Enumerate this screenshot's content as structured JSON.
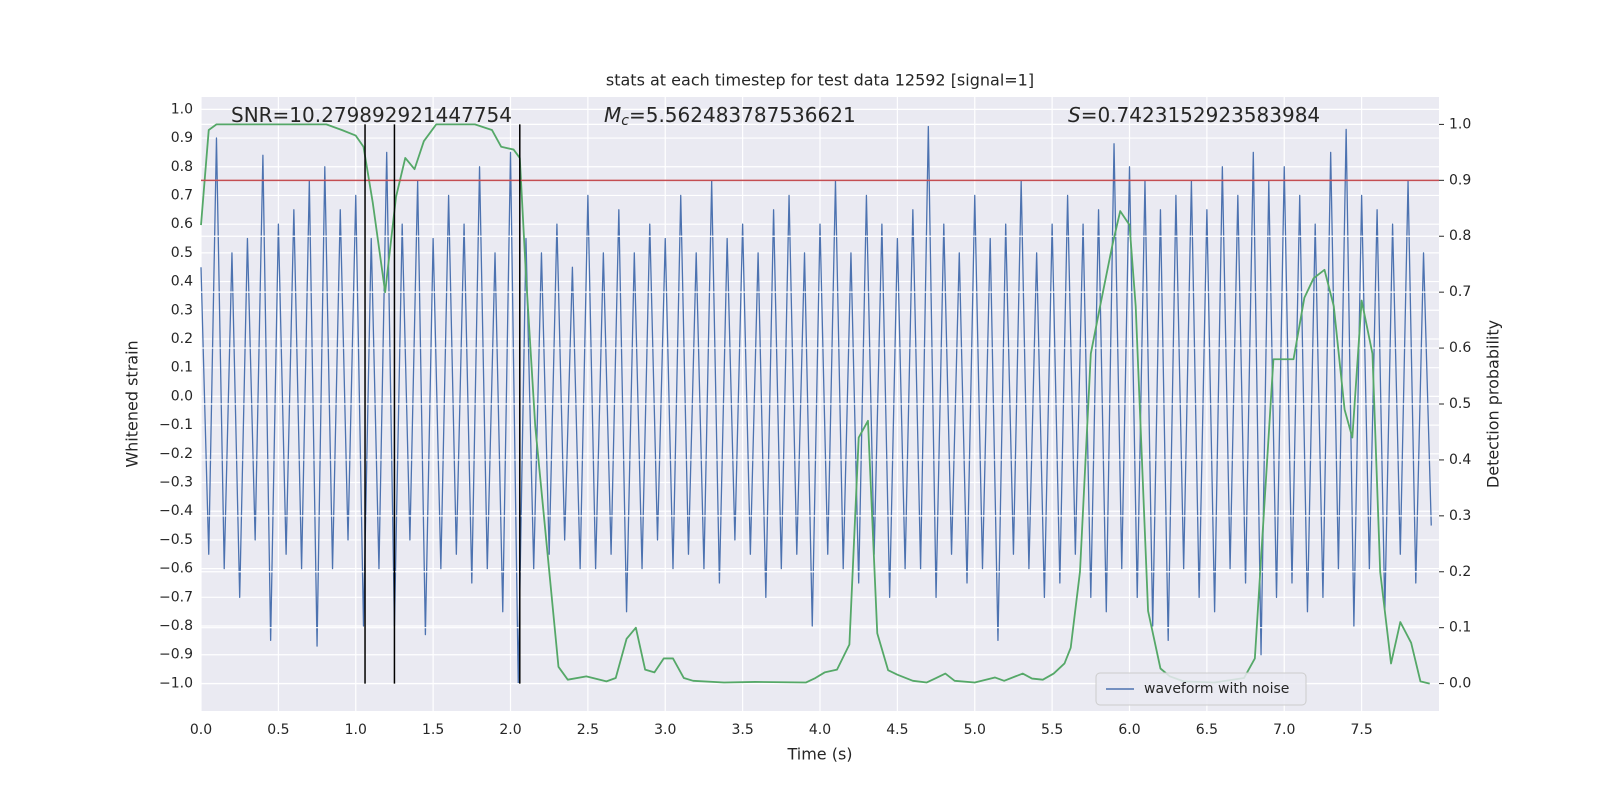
{
  "chart_data": {
    "type": "line",
    "title": "stats at each timestep for test data 12592 [signal=1]",
    "xlabel": "Time (s)",
    "ylabel": "Whitened strain",
    "y2label": "Detection probability",
    "annotations": [
      {
        "parts": [
          "SNR=10.279892921447754"
        ]
      },
      {
        "parts": [
          "M",
          "c",
          "=5.562483787536621"
        ]
      },
      {
        "parts": [
          "S",
          "=0.7423152923583984"
        ]
      }
    ],
    "xlim": [
      0,
      8.0
    ],
    "ylim": [
      -1.096,
      1.043
    ],
    "y2lim": [
      -0.049,
      1.049
    ],
    "xticks": [
      {
        "value": 0,
        "label": "0.0"
      },
      {
        "value": 0.5,
        "label": "0.5"
      },
      {
        "value": 1,
        "label": "1.0"
      },
      {
        "value": 1.5,
        "label": "1.5"
      },
      {
        "value": 2,
        "label": "2.0"
      },
      {
        "value": 2.5,
        "label": "2.5"
      },
      {
        "value": 3,
        "label": "3.0"
      },
      {
        "value": 3.5,
        "label": "3.5"
      },
      {
        "value": 4,
        "label": "4.0"
      },
      {
        "value": 4.5,
        "label": "4.5"
      },
      {
        "value": 5,
        "label": "5.0"
      },
      {
        "value": 5.5,
        "label": "5.5"
      },
      {
        "value": 6,
        "label": "6.0"
      },
      {
        "value": 6.5,
        "label": "6.5"
      },
      {
        "value": 7,
        "label": "7.0"
      },
      {
        "value": 7.5,
        "label": "7.5"
      }
    ],
    "yticks": [
      {
        "value": -1,
        "label": "−1.0"
      },
      {
        "value": -0.9,
        "label": "−0.9"
      },
      {
        "value": -0.8,
        "label": "−0.8"
      },
      {
        "value": -0.7,
        "label": "−0.7"
      },
      {
        "value": -0.6,
        "label": "−0.6"
      },
      {
        "value": -0.5,
        "label": "−0.5"
      },
      {
        "value": -0.4,
        "label": "−0.4"
      },
      {
        "value": -0.3,
        "label": "−0.3"
      },
      {
        "value": -0.2,
        "label": "−0.2"
      },
      {
        "value": -0.1,
        "label": "−0.1"
      },
      {
        "value": 0,
        "label": "0.0"
      },
      {
        "value": 0.1,
        "label": "0.1"
      },
      {
        "value": 0.2,
        "label": "0.2"
      },
      {
        "value": 0.3,
        "label": "0.3"
      },
      {
        "value": 0.4,
        "label": "0.4"
      },
      {
        "value": 0.5,
        "label": "0.5"
      },
      {
        "value": 0.6,
        "label": "0.6"
      },
      {
        "value": 0.7,
        "label": "0.7"
      },
      {
        "value": 0.8,
        "label": "0.8"
      },
      {
        "value": 0.9,
        "label": "0.9"
      },
      {
        "value": 1,
        "label": "1.0"
      }
    ],
    "y2ticks": [
      {
        "value": 0,
        "label": "0.0"
      },
      {
        "value": 0.1,
        "label": "0.1"
      },
      {
        "value": 0.2,
        "label": "0.2"
      },
      {
        "value": 0.3,
        "label": "0.3"
      },
      {
        "value": 0.4,
        "label": "0.4"
      },
      {
        "value": 0.5,
        "label": "0.5"
      },
      {
        "value": 0.6,
        "label": "0.6"
      },
      {
        "value": 0.7,
        "label": "0.7"
      },
      {
        "value": 0.8,
        "label": "0.8"
      },
      {
        "value": 0.9,
        "label": "0.9"
      },
      {
        "value": 1,
        "label": "1.0"
      }
    ],
    "grid": true,
    "legend": "lower right",
    "series": [
      {
        "name": "waveform with noise",
        "color": "#4c72b0",
        "x": [
          0,
          0.05,
          0.1,
          0.15,
          0.2,
          0.25,
          0.3,
          0.35,
          0.4,
          0.45,
          0.5,
          0.55,
          0.6,
          0.65,
          0.7,
          0.75,
          0.8,
          0.85,
          0.9,
          0.95,
          1,
          1.05,
          1.1,
          1.15,
          1.2,
          1.25,
          1.3,
          1.35,
          1.4,
          1.45,
          1.5,
          1.55,
          1.6,
          1.65,
          1.7,
          1.75,
          1.8,
          1.85,
          1.9,
          1.95,
          2,
          2.05,
          2.1,
          2.15,
          2.2,
          2.25,
          2.3,
          2.35,
          2.4,
          2.45,
          2.5,
          2.55,
          2.6,
          2.65,
          2.7,
          2.75,
          2.8,
          2.85,
          2.9,
          2.95,
          3,
          3.05,
          3.1,
          3.15,
          3.2,
          3.25,
          3.3,
          3.35,
          3.4,
          3.45,
          3.5,
          3.55,
          3.6,
          3.65,
          3.7,
          3.75,
          3.8,
          3.85,
          3.9,
          3.95,
          4,
          4.05,
          4.1,
          4.15,
          4.2,
          4.25,
          4.3,
          4.35,
          4.4,
          4.45,
          4.5,
          4.55,
          4.6,
          4.65,
          4.7,
          4.75,
          4.8,
          4.85,
          4.9,
          4.95,
          5,
          5.05,
          5.1,
          5.15,
          5.2,
          5.25,
          5.3,
          5.35,
          5.4,
          5.45,
          5.5,
          5.55,
          5.6,
          5.65,
          5.7,
          5.75,
          5.8,
          5.85,
          5.9,
          5.95,
          6,
          6.05,
          6.1,
          6.15,
          6.2,
          6.25,
          6.3,
          6.35,
          6.4,
          6.45,
          6.5,
          6.55,
          6.6,
          6.65,
          6.7,
          6.75,
          6.8,
          6.85,
          6.9,
          6.95,
          7,
          7.05,
          7.1,
          7.15,
          7.2,
          7.25,
          7.3,
          7.35,
          7.4,
          7.45,
          7.5,
          7.55,
          7.6,
          7.65,
          7.7,
          7.75,
          7.8,
          7.85,
          7.9,
          7.95
        ],
        "values": [
          0.45,
          -0.55,
          0.9,
          -0.6,
          0.5,
          -0.7,
          0.55,
          -0.5,
          0.84,
          -0.85,
          0.6,
          -0.55,
          0.65,
          -0.6,
          0.75,
          -0.87,
          0.8,
          -0.6,
          0.65,
          -0.5,
          0.7,
          -0.8,
          0.55,
          -0.6,
          0.85,
          -0.8,
          0.6,
          -0.5,
          0.75,
          -0.83,
          0.55,
          -0.6,
          0.7,
          -0.55,
          0.6,
          -0.65,
          0.8,
          -0.6,
          0.5,
          -0.75,
          0.85,
          -1.0,
          0.55,
          -0.6,
          0.5,
          -0.55,
          0.6,
          -0.5,
          0.45,
          -0.6,
          0.7,
          -0.6,
          0.5,
          -0.55,
          0.65,
          -0.75,
          0.5,
          -0.6,
          0.6,
          -0.5,
          0.55,
          -0.6,
          0.7,
          -0.55,
          0.5,
          -0.6,
          0.75,
          -0.65,
          0.55,
          -0.5,
          0.6,
          -0.55,
          0.5,
          -0.7,
          0.65,
          -0.6,
          0.7,
          -0.55,
          0.5,
          -0.8,
          0.6,
          -0.55,
          0.75,
          -0.6,
          0.5,
          -0.65,
          0.7,
          -0.55,
          0.6,
          -0.7,
          0.55,
          -0.6,
          0.65,
          -0.6,
          0.94,
          -0.7,
          0.6,
          -0.55,
          0.5,
          -0.65,
          0.7,
          -0.6,
          0.55,
          -0.85,
          0.6,
          -0.55,
          0.75,
          -0.6,
          0.5,
          -0.7,
          0.6,
          -0.65,
          0.7,
          -0.55,
          0.6,
          -0.7,
          0.65,
          -0.75,
          0.88,
          -0.6,
          0.8,
          -0.7,
          0.75,
          -0.8,
          0.65,
          -0.85,
          0.7,
          -0.6,
          0.75,
          -0.7,
          0.65,
          -0.75,
          0.8,
          -0.6,
          0.7,
          -0.65,
          0.85,
          -0.9,
          0.75,
          -0.7,
          0.8,
          -0.65,
          0.7,
          -0.75,
          0.6,
          -0.7,
          0.85,
          -0.6,
          0.93,
          -0.8,
          0.7,
          -0.6,
          0.65,
          -0.75,
          0.6,
          -0.55,
          0.75,
          -0.65,
          0.5,
          -0.45
        ]
      },
      {
        "color": "#55a868",
        "axis": "y2",
        "x": [
          0,
          0.05,
          0.1,
          0.81,
          0.91,
          1.0,
          1.05,
          1.11,
          1.19,
          1.26,
          1.32,
          1.38,
          1.44,
          1.52,
          1.77,
          1.88,
          1.94,
          2.02,
          2.06,
          2.1,
          2.16,
          2.31,
          2.37,
          2.49,
          2.62,
          2.68,
          2.75,
          2.81,
          2.87,
          2.93,
          2.99,
          3.05,
          3.12,
          3.18,
          3.38,
          3.58,
          3.91,
          3.97,
          4.03,
          4.11,
          4.19,
          4.25,
          4.31,
          4.37,
          4.44,
          4.5,
          4.6,
          4.69,
          4.75,
          4.81,
          4.87,
          5.0,
          5.13,
          5.19,
          5.31,
          5.37,
          5.44,
          5.51,
          5.58,
          5.62,
          5.68,
          5.75,
          5.81,
          5.89,
          5.94,
          6.0,
          6.04,
          6.12,
          6.2,
          6.26,
          6.35,
          6.55,
          6.74,
          6.81,
          6.93,
          7.06,
          7.13,
          7.19,
          7.26,
          7.32,
          7.39,
          7.44,
          7.5,
          7.57,
          7.62,
          7.69,
          7.75,
          7.82,
          7.88,
          7.94
        ],
        "values": [
          0.82,
          0.99,
          1.0,
          1.0,
          0.99,
          0.98,
          0.96,
          0.86,
          0.7,
          0.87,
          0.94,
          0.92,
          0.97,
          1.0,
          1.0,
          0.99,
          0.96,
          0.955,
          0.94,
          0.73,
          0.46,
          0.03,
          0.007,
          0.013,
          0.004,
          0.01,
          0.08,
          0.1,
          0.025,
          0.02,
          0.045,
          0.045,
          0.01,
          0.005,
          0.002,
          0.003,
          0.002,
          0.01,
          0.02,
          0.025,
          0.07,
          0.44,
          0.47,
          0.09,
          0.024,
          0.016,
          0.005,
          0.002,
          0.01,
          0.018,
          0.005,
          0.002,
          0.011,
          0.005,
          0.018,
          0.009,
          0.007,
          0.018,
          0.036,
          0.064,
          0.2,
          0.59,
          0.675,
          0.785,
          0.845,
          0.82,
          0.675,
          0.13,
          0.027,
          0.013,
          0.004,
          0.002,
          0.01,
          0.045,
          0.58,
          0.58,
          0.69,
          0.725,
          0.74,
          0.675,
          0.49,
          0.44,
          0.685,
          0.59,
          0.2,
          0.036,
          0.11,
          0.073,
          0.004,
          0.0
        ]
      }
    ],
    "hlines": {
      "y": [
        0.9
      ],
      "axis": "y2",
      "color": "#c44e52"
    },
    "vlines": {
      "x": [
        1.06,
        1.25,
        2.06
      ],
      "ymin": 0,
      "ymax": 1,
      "axis": "y2",
      "color": "#000000"
    }
  }
}
